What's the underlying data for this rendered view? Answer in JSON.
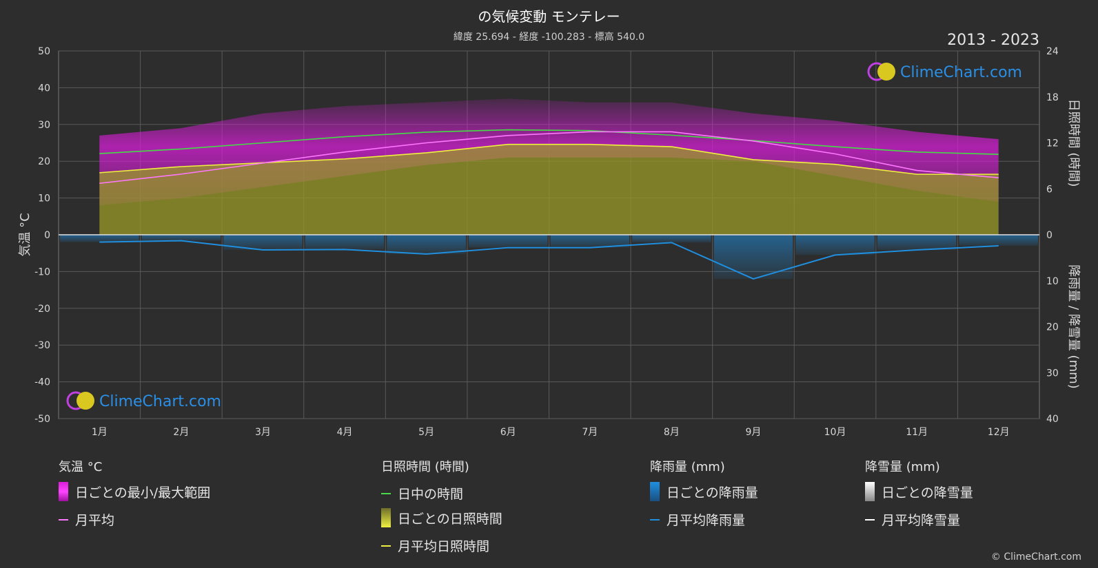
{
  "title": "の気候変動 モンテレー",
  "subtitle": "緯度 25.694 - 経度 -100.283 - 標高 540.0",
  "years": "2013 - 2023",
  "watermark": "ClimeChart.com",
  "copyright": "© ClimeChart.com",
  "colors": {
    "background": "#2d2d2d",
    "temp_range": "#d81ed8",
    "temp_avg": "#ff77ff",
    "daylight": "#44dd44",
    "sunshine_fill": "#9a9a28",
    "sunshine_avg": "#f0f040",
    "rain": "#1f8fe0",
    "snow": "#ffffff"
  },
  "chart_data": {
    "type": "line",
    "categories": [
      "1月",
      "2月",
      "3月",
      "4月",
      "5月",
      "6月",
      "7月",
      "8月",
      "9月",
      "10月",
      "11月",
      "12月"
    ],
    "axes": {
      "left": {
        "label": "気温 °C",
        "ylim": [
          -50,
          50
        ],
        "ticks": [
          "50",
          "40",
          "30",
          "20",
          "10",
          "0",
          "-10",
          "-20",
          "-30",
          "-40",
          "-50"
        ]
      },
      "right_top": {
        "label": "日照時間 (時間)",
        "ylim": [
          0,
          24
        ],
        "ticks": [
          "24",
          "18",
          "12",
          "6",
          "0"
        ]
      },
      "right_bottom": {
        "label": "降雨量 / 降雪量 (mm)",
        "ylim": [
          0,
          40
        ],
        "ticks": [
          "0",
          "10",
          "20",
          "30",
          "40"
        ]
      }
    },
    "grid": true,
    "series": [
      {
        "name": "日ごとの最小/最大範囲",
        "kind": "band",
        "axis": "left",
        "low": [
          8,
          10,
          13,
          16,
          19,
          21,
          21,
          21,
          20,
          16,
          12,
          9
        ],
        "high": [
          27,
          29,
          33,
          35,
          36,
          37,
          36,
          36,
          33,
          31,
          28,
          26
        ]
      },
      {
        "name": "月平均",
        "kind": "line",
        "axis": "left",
        "values": [
          14,
          16.5,
          19.5,
          22.5,
          25,
          27,
          28,
          28,
          25.5,
          22,
          17.5,
          15.5
        ]
      },
      {
        "name": "日中の時間",
        "kind": "line",
        "axis": "right_top",
        "values": [
          10.6,
          11.2,
          12.0,
          12.8,
          13.4,
          13.7,
          13.6,
          13.0,
          12.3,
          11.5,
          10.8,
          10.5
        ]
      },
      {
        "name": "日ごとの日照時間",
        "kind": "area",
        "axis": "right_top",
        "values": [
          8.1,
          8.9,
          9.4,
          9.9,
          10.7,
          11.8,
          11.8,
          11.5,
          9.8,
          9.2,
          7.9,
          7.9
        ]
      },
      {
        "name": "月平均日照時間",
        "kind": "line",
        "axis": "right_top",
        "values": [
          8.1,
          8.9,
          9.4,
          9.9,
          10.7,
          11.8,
          11.8,
          11.5,
          9.8,
          9.2,
          7.9,
          7.9
        ]
      },
      {
        "name": "日ごとの降雨量",
        "kind": "bars",
        "axis": "right_bottom",
        "values": [
          1.6,
          1.3,
          3.3,
          3.2,
          4.2,
          2.8,
          2.8,
          1.7,
          9.6,
          4.4,
          3.3,
          2.4
        ]
      },
      {
        "name": "月平均降雨量",
        "kind": "line",
        "axis": "right_bottom",
        "values": [
          1.6,
          1.3,
          3.3,
          3.2,
          4.2,
          2.8,
          2.8,
          1.7,
          9.6,
          4.4,
          3.3,
          2.4
        ]
      },
      {
        "name": "日ごとの降雪量",
        "kind": "bars",
        "axis": "right_bottom",
        "values": [
          0,
          0,
          0,
          0,
          0,
          0,
          0,
          0,
          0,
          0,
          0,
          0
        ]
      },
      {
        "name": "月平均降雪量",
        "kind": "line",
        "axis": "right_bottom",
        "values": [
          0,
          0,
          0,
          0,
          0,
          0,
          0,
          0,
          0,
          0,
          0,
          0
        ]
      }
    ]
  },
  "legend": {
    "temp": {
      "title": "気温 °C",
      "items": [
        "日ごとの最小/最大範囲",
        "月平均"
      ]
    },
    "sun": {
      "title": "日照時間 (時間)",
      "items": [
        "日中の時間",
        "日ごとの日照時間",
        "月平均日照時間"
      ]
    },
    "rain": {
      "title": "降雨量 (mm)",
      "items": [
        "日ごとの降雨量",
        "月平均降雨量"
      ]
    },
    "snow": {
      "title": "降雪量 (mm)",
      "items": [
        "日ごとの降雪量",
        "月平均降雪量"
      ]
    }
  }
}
